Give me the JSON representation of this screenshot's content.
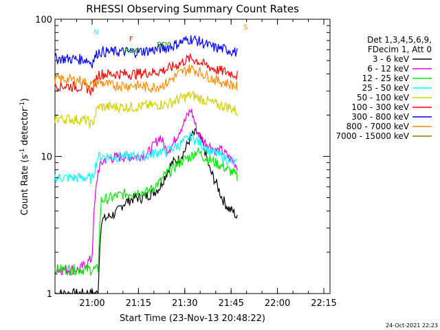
{
  "chart_data": {
    "type": "line",
    "title": "RHESSI Observing Summary Count Rates",
    "xlabel": "Start Time (23-Nov-13 20:48:22)",
    "ylabel": "Count Rate (s",
    "ylabel_sup": "-1",
    "ylabel_tail": " detector",
    "ylabel_sup2": "-1",
    "ylabel_end": ")",
    "y_scale": "log",
    "ylim": [
      1,
      100
    ],
    "xlim_minutes": [
      48,
      137
    ],
    "x_ticks": [
      {
        "label": "21:00",
        "min": 60
      },
      {
        "label": "21:15",
        "min": 75
      },
      {
        "label": "21:30",
        "min": 90
      },
      {
        "label": "21:45",
        "min": 105
      },
      {
        "label": "22:00",
        "min": 120
      },
      {
        "label": "22:15",
        "min": 135
      }
    ],
    "y_ticks": [
      {
        "label": "1",
        "value": 1
      },
      {
        "label": "10",
        "value": 10
      },
      {
        "label": "100",
        "value": 100
      }
    ],
    "legend_header": [
      "Det 1,3,4,5,6,9,",
      "FDecim 1, Att 0"
    ],
    "legend_placement": "right",
    "series": [
      {
        "name": "3 - 6 keV",
        "color": "#000000",
        "x": [
          48,
          62,
          63,
          66,
          68,
          70,
          72,
          74,
          76,
          78,
          80,
          82,
          84,
          86,
          88,
          90,
          92,
          94,
          96,
          98,
          100,
          102,
          104,
          106,
          107
        ],
        "y": [
          1,
          1,
          3.4,
          3.7,
          3.9,
          4.5,
          4.8,
          5.0,
          5.0,
          5.2,
          5.5,
          6.0,
          7.5,
          9.0,
          9.5,
          11,
          14,
          15,
          12,
          8,
          6.5,
          5,
          4.2,
          3.9,
          3.5
        ]
      },
      {
        "name": "6 - 12 keV",
        "color": "#e600e6",
        "x": [
          48,
          56,
          60,
          62,
          64,
          66,
          70,
          74,
          78,
          80,
          82,
          84,
          86,
          88,
          90,
          92,
          94,
          96,
          98,
          100,
          102,
          104,
          106,
          107
        ],
        "y": [
          1.5,
          1.5,
          1.8,
          8,
          9.5,
          9.7,
          10,
          10,
          10.5,
          12,
          14,
          11,
          12,
          15,
          18,
          22,
          15,
          13,
          12,
          11,
          11,
          10,
          9,
          8.5
        ]
      },
      {
        "name": "12 - 25 keV",
        "color": "#00e600",
        "x": [
          48,
          62,
          63,
          66,
          70,
          74,
          78,
          80,
          82,
          84,
          86,
          88,
          90,
          92,
          94,
          96,
          98,
          100,
          102,
          104,
          106,
          107
        ],
        "y": [
          1.5,
          1.5,
          4.8,
          5.0,
          5.3,
          5.5,
          5.5,
          6.0,
          6.5,
          7.5,
          8,
          9,
          9.5,
          10,
          11,
          10,
          9.5,
          9,
          8.5,
          8,
          7.5,
          7
        ]
      },
      {
        "name": "25 - 50 keV",
        "color": "#00ffff",
        "x": [
          48,
          58,
          60,
          62,
          66,
          70,
          74,
          78,
          80,
          82,
          84,
          86,
          88,
          90,
          92,
          94,
          96,
          98,
          100,
          102,
          104,
          106,
          107
        ],
        "y": [
          7,
          7,
          6.8,
          10,
          10,
          10,
          10,
          10.2,
          10.5,
          11,
          10.8,
          11.5,
          12,
          13,
          14,
          13,
          12,
          11,
          10.5,
          10,
          9.5,
          9,
          8.8
        ]
      },
      {
        "name": "50 - 100 keV",
        "color": "#d2d200",
        "x": [
          48,
          58,
          60,
          62,
          66,
          70,
          74,
          78,
          80,
          82,
          84,
          86,
          88,
          90,
          92,
          94,
          96,
          98,
          100,
          102,
          104,
          106,
          107
        ],
        "y": [
          19,
          18.5,
          17,
          23,
          23,
          23,
          23,
          23.5,
          23.5,
          24,
          24,
          25,
          26,
          27,
          28,
          27,
          26,
          25,
          24,
          23.5,
          23,
          22,
          21
        ]
      },
      {
        "name": "100 - 300 keV",
        "color": "#ff0000",
        "x": [
          48,
          58,
          60,
          62,
          66,
          70,
          74,
          78,
          80,
          82,
          84,
          86,
          88,
          90,
          92,
          94,
          96,
          98,
          100,
          102,
          104,
          106,
          107
        ],
        "y": [
          33,
          32,
          30,
          40,
          40,
          40,
          40,
          41,
          41,
          42,
          43,
          45,
          47,
          50,
          52,
          50,
          47,
          45,
          43,
          42,
          41,
          40,
          39
        ]
      },
      {
        "name": "300 - 800 keV",
        "color": "#0000ff",
        "x": [
          48,
          58,
          60,
          62,
          66,
          70,
          74,
          78,
          80,
          82,
          84,
          86,
          88,
          90,
          92,
          94,
          96,
          98,
          100,
          102,
          104,
          106,
          107
        ],
        "y": [
          52,
          51,
          48,
          58,
          58,
          58,
          58,
          59,
          60,
          61,
          62,
          64,
          67,
          70,
          72,
          70,
          67,
          64,
          62,
          61,
          60,
          58,
          57
        ]
      },
      {
        "name": "800 - 7000 keV",
        "color": "#ff8c00",
        "x": [
          48,
          56,
          60,
          62,
          66,
          70,
          74,
          78,
          80,
          82,
          84,
          86,
          88,
          90,
          92,
          94,
          96,
          98,
          100,
          102,
          104,
          106,
          107
        ],
        "y": [
          37,
          36,
          33,
          35,
          33,
          33,
          33,
          32,
          32,
          33,
          34,
          37,
          40,
          42,
          44,
          42,
          40,
          38,
          36,
          35,
          34,
          33,
          32
        ]
      },
      {
        "name": "7000 - 15000 keV",
        "color": "#808000",
        "x": [],
        "y": []
      }
    ],
    "annotations": [
      "N",
      "F",
      "RD0",
      "RD6",
      "S"
    ]
  },
  "timestamp": "24-Oct-2021 22:23"
}
